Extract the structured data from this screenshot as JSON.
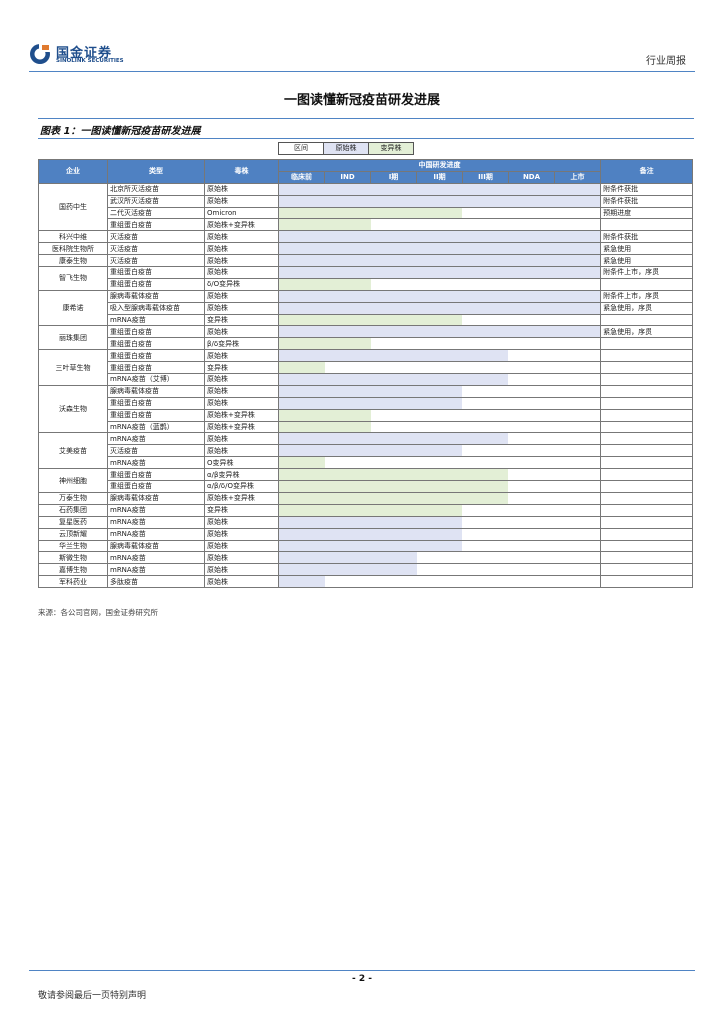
{
  "header": {
    "logo_cn": "国金证券",
    "logo_en": "SINOLINK SECURITIES",
    "report_type": "行业周报",
    "brand_color": "#1f4e8c"
  },
  "page_title": "一图读懂新冠疫苗研发进展",
  "figure_title": "图表 1：一图读懂新冠疫苗研发进展",
  "legend": {
    "items": [
      "区间",
      "原始株",
      "变异株"
    ],
    "colors": {
      "original": "#dfe3f3",
      "variant": "#e3efd6"
    }
  },
  "table": {
    "headers": {
      "company": "企业",
      "type": "类型",
      "strain": "毒株",
      "progress_group": "中国研发进度",
      "notes": "备注",
      "stages": [
        "临床前",
        "IND",
        "I期",
        "II期",
        "III期",
        "NDA",
        "上市"
      ]
    },
    "rows": [
      {
        "company": "国药中生",
        "type": "北京所灭活疫苗",
        "strain": "原始株",
        "reach": 7,
        "bar": "original",
        "note": "附条件获批"
      },
      {
        "company": "",
        "type": "武汉所灭活疫苗",
        "strain": "原始株",
        "reach": 7,
        "bar": "original",
        "note": "附条件获批"
      },
      {
        "company": "",
        "type": "二代灭活疫苗",
        "strain": "Omicron",
        "reach": 4,
        "bar": "variant",
        "note": "预期进度"
      },
      {
        "company": "",
        "type": "重组蛋白疫苗",
        "strain": "原始株+变异株",
        "reach": 2,
        "bar": "variant",
        "note": ""
      },
      {
        "company": "科兴中维",
        "type": "灭活疫苗",
        "strain": "原始株",
        "reach": 7,
        "bar": "original",
        "note": "附条件获批"
      },
      {
        "company": "医科院生物所",
        "type": "灭活疫苗",
        "strain": "原始株",
        "reach": 7,
        "bar": "original",
        "note": "紧急使用"
      },
      {
        "company": "康泰生物",
        "type": "灭活疫苗",
        "strain": "原始株",
        "reach": 7,
        "bar": "original",
        "note": "紧急使用"
      },
      {
        "company": "智飞生物",
        "type": "重组蛋白疫苗",
        "strain": "原始株",
        "reach": 7,
        "bar": "original",
        "note": "附条件上市，序贯"
      },
      {
        "company": "",
        "type": "重组蛋白疫苗",
        "strain": "δ/O变异株",
        "reach": 2,
        "bar": "variant",
        "note": ""
      },
      {
        "company": "康希诺",
        "type": "腺病毒载体疫苗",
        "strain": "原始株",
        "reach": 7,
        "bar": "original",
        "note": "附条件上市，序贯"
      },
      {
        "company": "",
        "type": "吸入型腺病毒载体疫苗",
        "strain": "原始株",
        "reach": 7,
        "bar": "original",
        "note": "紧急使用，序贯"
      },
      {
        "company": "",
        "type": "mRNA疫苗",
        "strain": "变异株",
        "reach": 4,
        "bar": "variant",
        "note": ""
      },
      {
        "company": "丽珠集团",
        "type": "重组蛋白疫苗",
        "strain": "原始株",
        "reach": 7,
        "bar": "original",
        "note": "紧急使用，序贯"
      },
      {
        "company": "",
        "type": "重组蛋白疫苗",
        "strain": "β/δ变异株",
        "reach": 2,
        "bar": "variant",
        "note": ""
      },
      {
        "company": "三叶草生物",
        "type": "重组蛋白疫苗",
        "strain": "原始株",
        "reach": 5,
        "bar": "original",
        "note": ""
      },
      {
        "company": "",
        "type": "重组蛋白疫苗",
        "strain": "变异株",
        "reach": 1,
        "bar": "variant",
        "note": ""
      },
      {
        "company": "",
        "type": "mRNA疫苗（艾博）",
        "strain": "原始株",
        "reach": 5,
        "bar": "original",
        "note": ""
      },
      {
        "company": "沃森生物",
        "type": "腺病毒载体疫苗",
        "strain": "原始株",
        "reach": 4,
        "bar": "original",
        "note": ""
      },
      {
        "company": "",
        "type": "重组蛋白疫苗",
        "strain": "原始株",
        "reach": 4,
        "bar": "original",
        "note": ""
      },
      {
        "company": "",
        "type": "重组蛋白疫苗",
        "strain": "原始株+变异株",
        "reach": 2,
        "bar": "variant",
        "note": ""
      },
      {
        "company": "",
        "type": "mRNA疫苗（蓝鹊）",
        "strain": "原始株+变异株",
        "reach": 2,
        "bar": "variant",
        "note": ""
      },
      {
        "company": "艾美疫苗",
        "type": "mRNA疫苗",
        "strain": "原始株",
        "reach": 5,
        "bar": "original",
        "note": ""
      },
      {
        "company": "",
        "type": "灭活疫苗",
        "strain": "原始株",
        "reach": 4,
        "bar": "original",
        "note": ""
      },
      {
        "company": "",
        "type": "mRNA疫苗",
        "strain": "O变异株",
        "reach": 1,
        "bar": "variant",
        "note": ""
      },
      {
        "company": "神州细胞",
        "type": "重组蛋白疫苗",
        "strain": "α/β变异株",
        "reach": 5,
        "bar": "variant",
        "note": ""
      },
      {
        "company": "",
        "type": "重组蛋白疫苗",
        "strain": "α/β/δ/O变异株",
        "reach": 5,
        "bar": "variant",
        "note": ""
      },
      {
        "company": "万泰生物",
        "type": "腺病毒载体疫苗",
        "strain": "原始株+变异株",
        "reach": 5,
        "bar": "variant",
        "note": ""
      },
      {
        "company": "石药集团",
        "type": "mRNA疫苗",
        "strain": "变异株",
        "reach": 4,
        "bar": "variant",
        "note": ""
      },
      {
        "company": "复星医药",
        "type": "mRNA疫苗",
        "strain": "原始株",
        "reach": 4,
        "bar": "original",
        "note": ""
      },
      {
        "company": "云顶新耀",
        "type": "mRNA疫苗",
        "strain": "原始株",
        "reach": 4,
        "bar": "original",
        "note": ""
      },
      {
        "company": "华兰生物",
        "type": "腺病毒载体疫苗",
        "strain": "原始株",
        "reach": 4,
        "bar": "original",
        "note": ""
      },
      {
        "company": "斯微生物",
        "type": "mRNA疫苗",
        "strain": "原始株",
        "reach": 3,
        "bar": "original",
        "note": ""
      },
      {
        "company": "嘉博生物",
        "type": "mRNA疫苗",
        "strain": "原始株",
        "reach": 3,
        "bar": "original",
        "note": ""
      },
      {
        "company": "军科药业",
        "type": "多肽疫苗",
        "strain": "原始株",
        "reach": 1,
        "bar": "original",
        "note": ""
      }
    ]
  },
  "source_note": "来源：各公司官网，国金证券研究所",
  "footer": {
    "page_number": "- 2 -",
    "disclaimer": "敬请参阅最后一页特别声明"
  }
}
